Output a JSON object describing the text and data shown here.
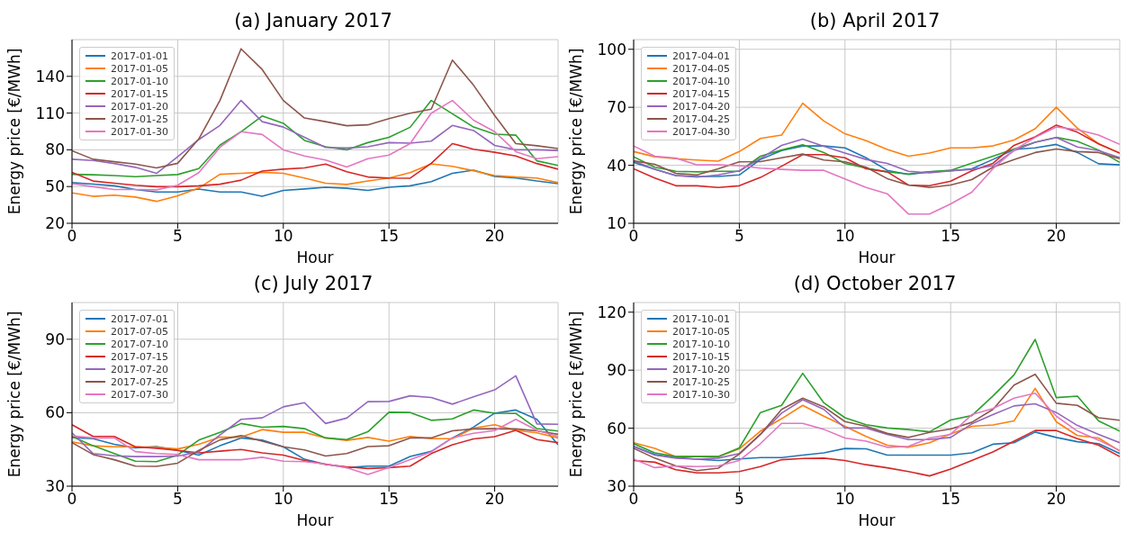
{
  "chart_data": [
    {
      "type": "line",
      "title": "(a) January 2017",
      "xlabel": "Hour",
      "ylabel": "Energy price [€/MWh]",
      "x": [
        0,
        1,
        2,
        3,
        4,
        5,
        6,
        7,
        8,
        9,
        10,
        11,
        12,
        13,
        14,
        15,
        16,
        17,
        18,
        19,
        20,
        21,
        22,
        23
      ],
      "xlim": [
        0,
        23
      ],
      "xticks": [
        0,
        5,
        10,
        15,
        20
      ],
      "ylim": [
        20,
        170
      ],
      "yticks": [
        20,
        50,
        80,
        110,
        140
      ],
      "grid": true,
      "legend": "top left",
      "series": [
        {
          "name": "2017-01-01",
          "color": "#1f77b4",
          "values": [
            53.2,
            52,
            50.6,
            47.6,
            45.5,
            45.5,
            48,
            45.5,
            45.5,
            42,
            46.8,
            48,
            49.4,
            48.6,
            46.8,
            49.4,
            50.6,
            54,
            60.8,
            63.4,
            58.3,
            57,
            54.5,
            52.4
          ]
        },
        {
          "name": "2017-01-05",
          "color": "#ff7f0e",
          "values": [
            44.8,
            42,
            43,
            41.4,
            37.9,
            42.5,
            48.8,
            60,
            60.8,
            61.6,
            60.8,
            57,
            52.7,
            51.7,
            54.5,
            57,
            61.4,
            68.5,
            66.5,
            62.9,
            59,
            57.8,
            57,
            53.2
          ]
        },
        {
          "name": "2017-01-10",
          "color": "#2ca02c",
          "values": [
            60,
            59.6,
            59,
            58,
            59,
            59.8,
            64.7,
            83.8,
            94.8,
            107.6,
            101.7,
            87.7,
            82.5,
            80,
            85.9,
            90.2,
            98.4,
            120.3,
            109.4,
            98.6,
            92.8,
            92,
            71,
            67.2
          ]
        },
        {
          "name": "2017-01-15",
          "color": "#d62728",
          "values": [
            61.6,
            54.5,
            52.7,
            51.1,
            49.9,
            49.9,
            50.6,
            51.9,
            55.2,
            62.6,
            64.2,
            65.2,
            68.3,
            62.1,
            57.8,
            57,
            56.8,
            69,
            85.1,
            80.5,
            78,
            74.9,
            68.8,
            64.2
          ]
        },
        {
          "name": "2017-01-20",
          "color": "#9467bd",
          "values": [
            72.3,
            71.3,
            68.8,
            65.7,
            60.8,
            74.4,
            88.4,
            99.9,
            120.3,
            103,
            98.6,
            90.2,
            82,
            81.5,
            82.5,
            85.9,
            85.4,
            87.1,
            99.9,
            95.8,
            83.6,
            80,
            80,
            79.5
          ]
        },
        {
          "name": "2017-01-25",
          "color": "#8c564b",
          "values": [
            79.2,
            72.3,
            70.3,
            68.3,
            65.2,
            69,
            88.9,
            120.3,
            162.5,
            145.6,
            120.3,
            106,
            103,
            99.7,
            100.4,
            105.5,
            109.9,
            113.2,
            153.3,
            132.8,
            108.1,
            85.1,
            83.3,
            81
          ]
        },
        {
          "name": "2017-01-30",
          "color": "#e377c2",
          "values": [
            52.4,
            49.9,
            47.6,
            47.6,
            47.3,
            51.1,
            61.4,
            82,
            94.8,
            92.5,
            80,
            74.9,
            71.6,
            66,
            72.8,
            75.7,
            85.1,
            109.9,
            120.3,
            104.2,
            94.8,
            78.5,
            72.8,
            74.4
          ]
        }
      ]
    },
    {
      "type": "line",
      "title": "(b) April 2017",
      "xlabel": "Hour",
      "ylabel": "Energy price [€/MWh]",
      "x": [
        0,
        1,
        2,
        3,
        4,
        5,
        6,
        7,
        8,
        9,
        10,
        11,
        12,
        13,
        14,
        15,
        16,
        17,
        18,
        19,
        20,
        21,
        22,
        23
      ],
      "xlim": [
        0,
        23
      ],
      "xticks": [
        0,
        5,
        10,
        15,
        20
      ],
      "ylim": [
        10,
        105
      ],
      "yticks": [
        10,
        40,
        70,
        100
      ],
      "grid": true,
      "legend": "top left",
      "series": [
        {
          "name": "2017-04-01",
          "color": "#1f77b4",
          "values": [
            41.5,
            37.9,
            34.7,
            34.2,
            34.2,
            35,
            43,
            47.6,
            50,
            50,
            49,
            43.9,
            37.4,
            35.3,
            36.6,
            37.1,
            38.2,
            43,
            48.2,
            49,
            50.8,
            46.6,
            40.8,
            40.2
          ]
        },
        {
          "name": "2017-04-05",
          "color": "#ff7f0e",
          "values": [
            47.1,
            44.4,
            43.4,
            42.7,
            42.1,
            47.1,
            53.9,
            55.6,
            72.1,
            62.9,
            56.3,
            52.7,
            48.2,
            44.7,
            46.3,
            49,
            49,
            50,
            53.1,
            58.9,
            70,
            59.2,
            51.1,
            46.3
          ]
        },
        {
          "name": "2017-04-10",
          "color": "#2ca02c",
          "values": [
            44.4,
            39,
            36.9,
            36.6,
            36.9,
            36.9,
            44.7,
            47.9,
            50.6,
            46.6,
            41,
            38.5,
            36.6,
            35.5,
            36.6,
            37.4,
            41.1,
            44.7,
            48.4,
            51.9,
            54.4,
            52.4,
            47.9,
            41.5
          ]
        },
        {
          "name": "2017-04-15",
          "color": "#d62728",
          "values": [
            38.2,
            33.4,
            29.4,
            29.4,
            28.5,
            29.4,
            33.7,
            39.5,
            45.5,
            45.5,
            43.9,
            38.2,
            36.6,
            29.8,
            29.4,
            31.8,
            37.1,
            41,
            50.3,
            54.7,
            60.8,
            57.1,
            51.1,
            46.3
          ]
        },
        {
          "name": "2017-04-20",
          "color": "#9467bd",
          "values": [
            42.3,
            37.9,
            34.7,
            33.9,
            35,
            37.1,
            43.5,
            50.3,
            53.5,
            49.8,
            46.3,
            43,
            41,
            36.9,
            36.1,
            37.1,
            37.9,
            39.8,
            47.6,
            51.9,
            54.4,
            49.5,
            47.6,
            43.9
          ]
        },
        {
          "name": "2017-04-25",
          "color": "#8c564b",
          "values": [
            42.3,
            40.5,
            35.8,
            35,
            38.2,
            41.8,
            41.9,
            43.9,
            45.8,
            42.7,
            41.8,
            39,
            33.1,
            29.8,
            28.5,
            29.8,
            32.6,
            39,
            43,
            46.6,
            48.4,
            47.1,
            46.6,
            43.4
          ]
        },
        {
          "name": "2017-04-30",
          "color": "#e377c2",
          "values": [
            50,
            44.7,
            43.7,
            40.2,
            40.2,
            39.8,
            38.5,
            37.9,
            37.4,
            37.4,
            32.9,
            28.5,
            25.3,
            14.8,
            14.8,
            20,
            26.1,
            38.2,
            47.9,
            54.4,
            59.8,
            58.4,
            55.6,
            50.8
          ]
        }
      ]
    },
    {
      "type": "line",
      "title": "(c) July 2017",
      "xlabel": "Hour",
      "ylabel": "Energy price [€/MWh]",
      "x": [
        0,
        1,
        2,
        3,
        4,
        5,
        6,
        7,
        8,
        9,
        10,
        11,
        12,
        13,
        14,
        15,
        16,
        17,
        18,
        19,
        20,
        21,
        22,
        23
      ],
      "xlim": [
        0,
        23
      ],
      "xticks": [
        0,
        5,
        10,
        15,
        20
      ],
      "ylim": [
        30,
        105
      ],
      "yticks": [
        30,
        60,
        90
      ],
      "grid": true,
      "legend": "top left",
      "series": [
        {
          "name": "2017-07-01",
          "color": "#1f77b4",
          "values": [
            49.9,
            49.4,
            47.1,
            45.6,
            46.2,
            44.6,
            42.7,
            46.5,
            49.7,
            48.8,
            46.1,
            41,
            38.9,
            37.6,
            38.2,
            38.2,
            42.1,
            44.2,
            49.7,
            54.1,
            59.8,
            61.1,
            57.3,
            46.9
          ]
        },
        {
          "name": "2017-07-05",
          "color": "#ff7f0e",
          "values": [
            48.1,
            46.5,
            46.1,
            46.1,
            45.9,
            45.2,
            47.1,
            50,
            50,
            53.1,
            52,
            52,
            49.7,
            48.7,
            49.9,
            48.4,
            50.3,
            49.4,
            49.4,
            53.7,
            55.1,
            52.8,
            51.8,
            49.7
          ]
        },
        {
          "name": "2017-07-10",
          "color": "#2ca02c",
          "values": [
            50.3,
            46.5,
            43.3,
            40.2,
            40,
            42.7,
            48.8,
            52,
            55.6,
            54.1,
            54.4,
            53.5,
            49.7,
            49,
            52.2,
            60.2,
            60.1,
            56.9,
            57.5,
            61.1,
            59.8,
            59.7,
            53.5,
            52.5
          ]
        },
        {
          "name": "2017-07-15",
          "color": "#d62728",
          "values": [
            55.1,
            50.3,
            50.3,
            46.1,
            45.5,
            44.6,
            43.6,
            44.3,
            45,
            43.6,
            42.7,
            40.5,
            38.9,
            37.9,
            37.2,
            37.6,
            38.2,
            43.3,
            46.9,
            49.3,
            50.2,
            52.8,
            49,
            47.8
          ]
        },
        {
          "name": "2017-07-20",
          "color": "#9467bd",
          "values": [
            51.8,
            43.3,
            42.4,
            42.1,
            42.1,
            42.3,
            44,
            50.9,
            57.3,
            57.9,
            62.4,
            64.1,
            55.6,
            57.8,
            64.5,
            64.6,
            66.9,
            66.2,
            63.5,
            66.5,
            69.3,
            75.1,
            55.4,
            55.3
          ]
        },
        {
          "name": "2017-07-25",
          "color": "#8c564b",
          "values": [
            47.8,
            42.9,
            40.8,
            38.2,
            38.1,
            39.4,
            44.6,
            48.9,
            50.7,
            48.4,
            46.1,
            44.8,
            42.3,
            43.3,
            46.2,
            46.5,
            49.7,
            49.7,
            52.6,
            53.4,
            53.5,
            53.4,
            52.6,
            51.2
          ]
        },
        {
          "name": "2017-07-30",
          "color": "#e377c2",
          "values": [
            50.6,
            49.7,
            49.7,
            44.1,
            43.3,
            42.9,
            40.8,
            40.8,
            40.8,
            41.8,
            40.2,
            40,
            39.1,
            37.5,
            34.8,
            37.6,
            40.8,
            44,
            49.7,
            51.6,
            52.7,
            57.3,
            52.8,
            50.3
          ]
        }
      ]
    },
    {
      "type": "line",
      "title": "(d) October 2017",
      "xlabel": "Hour",
      "ylabel": "Energy price [€/MWh]",
      "x": [
        0,
        1,
        2,
        3,
        4,
        5,
        6,
        7,
        8,
        9,
        10,
        11,
        12,
        13,
        14,
        15,
        16,
        17,
        18,
        19,
        20,
        21,
        22,
        23
      ],
      "xlim": [
        0,
        23
      ],
      "xticks": [
        0,
        5,
        10,
        15,
        20
      ],
      "ylim": [
        30,
        125
      ],
      "yticks": [
        30,
        60,
        90,
        120
      ],
      "grid": true,
      "legend": "top left",
      "series": [
        {
          "name": "2017-10-01",
          "color": "#1f77b4",
          "values": [
            50.6,
            46.4,
            44.8,
            44,
            43.3,
            44.1,
            44.8,
            44.8,
            46.1,
            47.2,
            49.5,
            49.3,
            46.1,
            46.1,
            46.1,
            46.1,
            47.2,
            51.7,
            52.5,
            58,
            55.2,
            53,
            52,
            46.9
          ]
        },
        {
          "name": "2017-10-05",
          "color": "#ff7f0e",
          "values": [
            52.5,
            49.6,
            45.3,
            45.3,
            45.3,
            49.3,
            58.5,
            64.9,
            71.8,
            66.2,
            61,
            55.7,
            51.2,
            50.1,
            52.5,
            57,
            61,
            61.7,
            63.8,
            80.6,
            63.3,
            56.2,
            54.9,
            48.2
          ]
        },
        {
          "name": "2017-10-10",
          "color": "#2ca02c",
          "values": [
            52,
            47.2,
            45.3,
            45.3,
            45.3,
            49.8,
            68.1,
            71.8,
            88.4,
            73.1,
            65.4,
            61.8,
            60.1,
            59.3,
            58.1,
            64.2,
            66.5,
            76.6,
            87.6,
            105.9,
            75.8,
            76.6,
            63.8,
            58.5
          ]
        },
        {
          "name": "2017-10-15",
          "color": "#d62728",
          "values": [
            43.3,
            42.4,
            38.5,
            36.9,
            36.9,
            37.6,
            40.1,
            43.7,
            44.3,
            44.5,
            43.3,
            41.1,
            39.5,
            37.6,
            35.3,
            38.8,
            43.3,
            47.7,
            53.3,
            58.8,
            58.8,
            54.6,
            51.2,
            45.3
          ]
        },
        {
          "name": "2017-10-20",
          "color": "#9467bd",
          "values": [
            50.4,
            46.1,
            44.5,
            44,
            44.5,
            46.9,
            56.8,
            67.8,
            74.7,
            69.7,
            60.1,
            60.1,
            56.8,
            54.1,
            54.1,
            55.2,
            62.2,
            67,
            71.5,
            72.6,
            68.1,
            61.4,
            56.8,
            52.5
          ]
        },
        {
          "name": "2017-10-25",
          "color": "#8c564b",
          "values": [
            49.6,
            44.5,
            40.5,
            38,
            39.3,
            46.6,
            56.8,
            69.7,
            75.5,
            71,
            63.4,
            61,
            57.3,
            55.2,
            57.8,
            59.6,
            63,
            69.7,
            82.3,
            87.9,
            72.9,
            71.8,
            65.4,
            64.1
          ]
        },
        {
          "name": "2017-10-30",
          "color": "#e377c2",
          "values": [
            44,
            39.6,
            40.5,
            40.1,
            40.5,
            43.3,
            52,
            62.5,
            62.5,
            59.4,
            54.9,
            53.3,
            50.1,
            50.6,
            54.9,
            56.8,
            67,
            70.2,
            75.5,
            78.1,
            66.2,
            58.5,
            53.8,
            48.5
          ]
        }
      ]
    }
  ]
}
